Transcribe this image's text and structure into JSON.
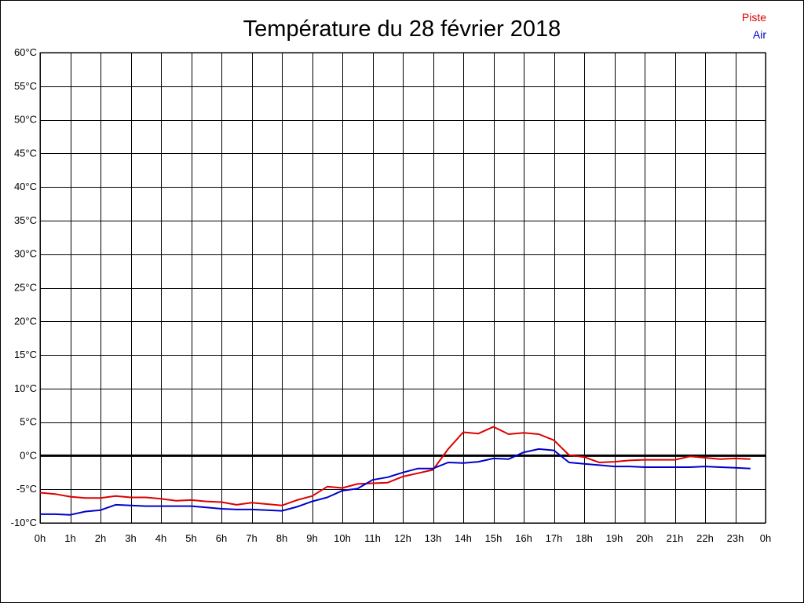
{
  "chart_data": {
    "type": "line",
    "title": "Température du 28 février 2018",
    "xlabel": "",
    "ylabel": "",
    "x_tick_labels": [
      "0h",
      "1h",
      "2h",
      "3h",
      "4h",
      "5h",
      "6h",
      "7h",
      "8h",
      "9h",
      "10h",
      "11h",
      "12h",
      "13h",
      "14h",
      "15h",
      "16h",
      "17h",
      "18h",
      "19h",
      "20h",
      "21h",
      "22h",
      "23h",
      "0h"
    ],
    "y_ticks": [
      -10,
      -5,
      0,
      5,
      10,
      15,
      20,
      25,
      30,
      35,
      40,
      45,
      50,
      55,
      60
    ],
    "y_tick_labels": [
      "-10°C",
      "-5°C",
      "0°C",
      "5°C",
      "10°C",
      "15°C",
      "20°C",
      "25°C",
      "30°C",
      "35°C",
      "40°C",
      "45°C",
      "50°C",
      "55°C",
      "60°C"
    ],
    "xlim": [
      0,
      24
    ],
    "ylim": [
      -10,
      60
    ],
    "grid": true,
    "zero_line": true,
    "legend_position": "top-right",
    "series": [
      {
        "name": "Piste",
        "color": "#dd0000",
        "x": [
          0,
          0.5,
          1,
          1.5,
          2,
          2.5,
          3,
          3.5,
          4,
          4.5,
          5,
          5.5,
          6,
          6.5,
          7,
          7.5,
          8,
          8.5,
          9,
          9.5,
          10,
          10.5,
          11,
          11.5,
          12,
          12.5,
          13,
          13.5,
          14,
          14.5,
          15,
          15.5,
          16,
          16.5,
          17,
          17.5,
          18,
          18.5,
          19,
          19.5,
          20,
          20.5,
          21,
          21.5,
          22,
          22.5,
          23,
          23.5
        ],
        "values": [
          -5.5,
          -5.7,
          -6.1,
          -6.3,
          -6.3,
          -6.0,
          -6.2,
          -6.2,
          -6.4,
          -6.7,
          -6.6,
          -6.8,
          -6.9,
          -7.3,
          -7.0,
          -7.2,
          -7.4,
          -6.6,
          -6.0,
          -4.6,
          -4.8,
          -4.2,
          -4.1,
          -4.0,
          -3.1,
          -2.6,
          -2.1,
          1.0,
          3.5,
          3.3,
          4.3,
          3.2,
          3.4,
          3.2,
          2.3,
          0.1,
          -0.2,
          -1.0,
          -0.9,
          -0.7,
          -0.6,
          -0.6,
          -0.6,
          -0.1,
          -0.3,
          -0.5,
          -0.4,
          -0.5
        ]
      },
      {
        "name": "Air",
        "color": "#0000cc",
        "x": [
          0,
          0.5,
          1,
          1.5,
          2,
          2.5,
          3,
          3.5,
          4,
          4.5,
          5,
          5.5,
          6,
          6.5,
          7,
          7.5,
          8,
          8.5,
          9,
          9.5,
          10,
          10.5,
          11,
          11.5,
          12,
          12.5,
          13,
          13.5,
          14,
          14.5,
          15,
          15.5,
          16,
          16.5,
          17,
          17.5,
          18,
          18.5,
          19,
          19.5,
          20,
          20.5,
          21,
          21.5,
          22,
          22.5,
          23,
          23.5
        ],
        "values": [
          -8.7,
          -8.7,
          -8.8,
          -8.3,
          -8.1,
          -7.3,
          -7.4,
          -7.5,
          -7.5,
          -7.5,
          -7.5,
          -7.7,
          -7.9,
          -8.0,
          -8.0,
          -8.1,
          -8.2,
          -7.6,
          -6.8,
          -6.2,
          -5.2,
          -4.9,
          -3.6,
          -3.2,
          -2.5,
          -1.9,
          -1.9,
          -1.0,
          -1.1,
          -0.9,
          -0.4,
          -0.5,
          0.5,
          1.0,
          0.8,
          -1.0,
          -1.2,
          -1.4,
          -1.6,
          -1.6,
          -1.7,
          -1.7,
          -1.7,
          -1.7,
          -1.6,
          -1.7,
          -1.8,
          -1.9
        ]
      }
    ]
  }
}
